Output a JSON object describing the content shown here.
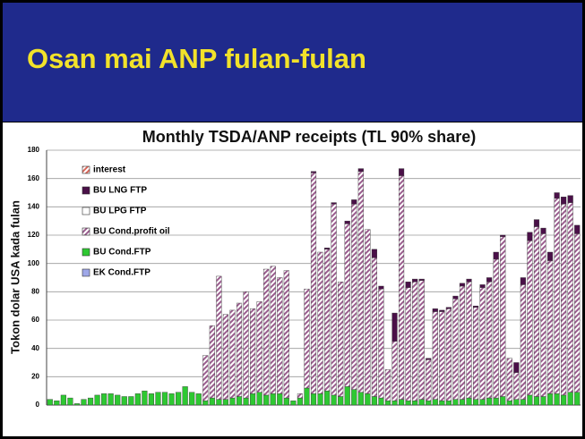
{
  "slide_title": "Osan mai ANP fulan-fulan",
  "chart_data": {
    "type": "stacked_bar",
    "title": "Monthly TSDA/ANP receipts (TL 90% share)",
    "y_label": "Tokon dolar USA kada fulan",
    "ylim": [
      0,
      180
    ],
    "yticks": [
      0,
      20,
      40,
      60,
      80,
      100,
      120,
      140,
      160,
      180
    ],
    "grid": true,
    "legend": "top-left",
    "categories": [
      null,
      null,
      null,
      null,
      null,
      null,
      null,
      null,
      null,
      null,
      null,
      null,
      null,
      null,
      null,
      null,
      null,
      null,
      null,
      null,
      null,
      null,
      null,
      null,
      null,
      null,
      null,
      null,
      null,
      null,
      null,
      null,
      null,
      null,
      null,
      null,
      null,
      null,
      null,
      null,
      null,
      null,
      null,
      null,
      null,
      null,
      null,
      null,
      null,
      null,
      null,
      null,
      null,
      null,
      null,
      null,
      null,
      null,
      null,
      null,
      null,
      null,
      null,
      null,
      null,
      null,
      null,
      null,
      null,
      null,
      null,
      null,
      null,
      null,
      null,
      null,
      null,
      null,
      null
    ],
    "series": [
      {
        "name": "interest",
        "color": "#d9675a",
        "hatch": true,
        "values": [
          0,
          0,
          0,
          0,
          0,
          0,
          0,
          0,
          0,
          0,
          0,
          0,
          0,
          0,
          0,
          0,
          0,
          0,
          0,
          0,
          0,
          0,
          0,
          0,
          0,
          0,
          0,
          0,
          0,
          0,
          0,
          0,
          0,
          0,
          0,
          0,
          0,
          0,
          0,
          0,
          0,
          0,
          0,
          0,
          0,
          0,
          0,
          0,
          0,
          0,
          0,
          0,
          0,
          0,
          0,
          0,
          0,
          0,
          0,
          0,
          0,
          0,
          0,
          0,
          0,
          0,
          0,
          0,
          0,
          0,
          0,
          0,
          0,
          0,
          0,
          0,
          0,
          0,
          0
        ]
      },
      {
        "name": "BU LNG FTP",
        "color": "#4a1048",
        "hatch": false,
        "values": [
          0,
          0,
          0,
          0,
          0,
          0,
          0,
          0,
          0,
          0,
          0,
          0,
          0,
          0,
          0,
          0,
          0,
          0,
          0,
          0,
          0,
          0,
          0,
          0,
          0,
          0,
          0,
          0,
          0,
          0,
          0,
          0,
          0,
          0,
          0,
          0,
          0,
          0,
          0,
          1,
          0,
          1,
          1,
          0,
          2,
          3,
          2,
          0,
          6,
          2,
          0,
          20,
          5,
          4,
          2,
          1,
          1,
          2,
          1,
          1,
          2,
          2,
          2,
          1,
          2,
          3,
          5,
          1,
          0,
          7,
          5,
          6,
          5,
          4,
          6,
          4,
          5,
          5,
          6
        ]
      },
      {
        "name": "BU LPG FTP",
        "color": "#ffffff",
        "hatch": false,
        "values": [
          0,
          0,
          0,
          0,
          0,
          0,
          0,
          0,
          0,
          0,
          0,
          0,
          0,
          0,
          0,
          0,
          0,
          0,
          0,
          0,
          0,
          0,
          0,
          0,
          0,
          0,
          0,
          0,
          0,
          0,
          0,
          0,
          0,
          0,
          0,
          0,
          0,
          0,
          0,
          0,
          0,
          0,
          0,
          0,
          0,
          0,
          0,
          0,
          0,
          0,
          0,
          0,
          0,
          0,
          0,
          0,
          0,
          0,
          0,
          0,
          0,
          0,
          0,
          0,
          0,
          0,
          0,
          0,
          0,
          0,
          0,
          0,
          0,
          0,
          0,
          0,
          0,
          0,
          0
        ]
      },
      {
        "name": "BU Cond.profit oil",
        "color": "#9a5d8e",
        "hatch": true,
        "values": [
          0,
          0,
          0,
          0,
          0,
          0,
          0,
          0,
          0,
          0,
          0,
          0,
          0,
          0,
          0,
          0,
          0,
          0,
          0,
          0,
          0,
          0,
          0,
          32,
          51,
          87,
          60,
          62,
          66,
          75,
          60,
          64,
          89,
          90,
          82,
          90,
          0,
          3,
          70,
          156,
          100,
          100,
          135,
          81,
          115,
          131,
          156,
          116,
          98,
          77,
          22,
          42,
          158,
          80,
          84,
          84,
          29,
          62,
          63,
          65,
          71,
          80,
          82,
          65,
          79,
          82,
          98,
          113,
          30,
          19,
          81,
          109,
          120,
          115,
          94,
          138,
          135,
          134,
          112
        ]
      },
      {
        "name": "BU Cond.FTP",
        "color": "#2ec832",
        "hatch": false,
        "values": [
          4,
          3,
          7,
          5,
          1,
          4,
          5,
          7,
          8,
          8,
          7,
          6,
          6,
          8,
          10,
          8,
          9,
          9,
          8,
          9,
          13,
          9,
          8,
          3,
          5,
          4,
          4,
          5,
          6,
          5,
          8,
          9,
          7,
          8,
          8,
          5,
          3,
          5,
          12,
          8,
          8,
          10,
          7,
          6,
          13,
          11,
          9,
          8,
          6,
          5,
          3,
          3,
          4,
          3,
          3,
          4,
          3,
          4,
          3,
          3,
          4,
          4,
          5,
          4,
          4,
          5,
          5,
          6,
          3,
          4,
          4,
          7,
          6,
          6,
          8,
          8,
          7,
          9,
          9
        ]
      },
      {
        "name": "EK Cond.FTP",
        "color": "#9fa8e8",
        "hatch": false,
        "values": [
          0,
          0,
          0,
          0,
          0,
          0,
          0,
          0,
          0,
          0,
          0,
          0,
          0,
          0,
          0,
          0,
          0,
          0,
          0,
          0,
          0,
          0,
          0,
          0,
          0,
          0,
          0,
          0,
          0,
          0,
          0,
          0,
          0,
          0,
          0,
          0,
          0,
          0,
          0,
          0,
          0,
          0,
          0,
          0,
          0,
          0,
          0,
          0,
          0,
          0,
          0,
          0,
          0,
          0,
          0,
          0,
          0,
          0,
          0,
          0,
          0,
          0,
          0,
          0,
          0,
          0,
          0,
          0,
          0,
          0,
          0,
          0,
          0,
          0,
          0,
          0,
          0,
          0,
          0
        ]
      }
    ]
  }
}
